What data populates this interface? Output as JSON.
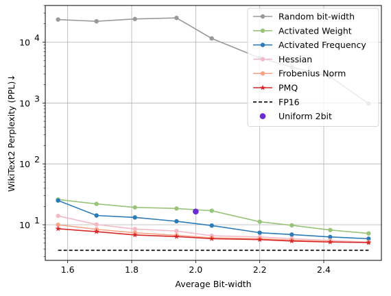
{
  "chart_data": {
    "type": "line",
    "title": "",
    "xlabel": "Average Bit-width",
    "ylabel": "WikiText2 Perplexity (PPL)↓",
    "yscale": "log",
    "xlim": [
      1.53,
      2.58
    ],
    "ylim": [
      2.6,
      40000
    ],
    "x_ticks": [
      "1.6",
      "1.8",
      "2.0",
      "2.2",
      "2.4"
    ],
    "x_tick_values": [
      1.6,
      1.8,
      2.0,
      2.2,
      2.4
    ],
    "y_ticks": [
      {
        "base": "10",
        "exp": "1",
        "value": 10
      },
      {
        "base": "10",
        "exp": "2",
        "value": 100
      },
      {
        "base": "10",
        "exp": "3",
        "value": 1000
      },
      {
        "base": "10",
        "exp": "4",
        "value": 10000
      }
    ],
    "grid": true,
    "legend_position": "top-right",
    "x": [
      1.57,
      1.69,
      1.81,
      1.94,
      2.05,
      2.2,
      2.3,
      2.42,
      2.54
    ],
    "series": [
      {
        "name": "Random bit-width",
        "color": "#999999",
        "marker": "circle",
        "values": [
          23500,
          22000,
          24000,
          25000,
          11500,
          5500,
          3900,
          2700,
          980
        ]
      },
      {
        "name": "Activated Weight",
        "color": "#98c379",
        "marker": "circle",
        "values": [
          26,
          22,
          19.3,
          18.5,
          17,
          11.2,
          9.8,
          8.2,
          7.2
        ]
      },
      {
        "name": "Activated Frequency",
        "color": "#2b7bb9",
        "marker": "circle",
        "values": [
          25,
          14.2,
          13.2,
          11.4,
          9.7,
          7.4,
          6.9,
          6.3,
          5.9
        ]
      },
      {
        "name": "Hessian",
        "color": "#f4b9c6",
        "marker": "circle",
        "values": [
          14,
          10.1,
          8.5,
          7.9,
          6.6,
          6.3,
          5.9,
          5.5,
          5.2
        ]
      },
      {
        "name": "Frobenius Norm",
        "color": "#f6a58a",
        "marker": "circle",
        "values": [
          10,
          8.4,
          7.4,
          6.7,
          6.1,
          5.9,
          5.6,
          5.3,
          5.1
        ]
      },
      {
        "name": "PMQ",
        "color": "#d62728",
        "marker": "star",
        "values": [
          8.6,
          7.7,
          6.8,
          6.4,
          5.9,
          5.7,
          5.4,
          5.2,
          5.1
        ]
      }
    ],
    "reference_line": {
      "name": "FP16",
      "value": 3.8,
      "color": "#000000",
      "style": "dashed",
      "x_range": [
        1.57,
        2.54
      ]
    },
    "point": {
      "name": "Uniform 2bit",
      "x": 2.0,
      "y": 16.5,
      "color": "#6a2ccf"
    }
  }
}
